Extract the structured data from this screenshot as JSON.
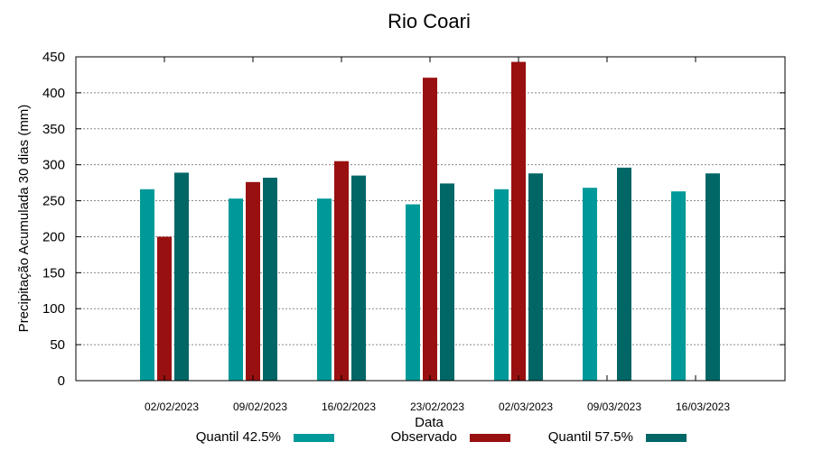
{
  "chart_data": {
    "type": "bar",
    "title": "Rio Coari",
    "xlabel": "Data",
    "ylabel": "Precipitação Acumulada 30 dias (mm)",
    "ylim": [
      0,
      450
    ],
    "yticks": [
      0,
      50,
      100,
      150,
      200,
      250,
      300,
      350,
      400,
      450
    ],
    "grid": true,
    "legend_position": "bottom",
    "categories": [
      "02/02/2023",
      "09/02/2023",
      "16/02/2023",
      "23/02/2023",
      "02/03/2023",
      "09/03/2023",
      "16/03/2023"
    ],
    "series": [
      {
        "name": "Quantil 42.5%",
        "color": "#009999",
        "values": [
          266,
          253,
          253,
          245,
          266,
          268,
          263
        ]
      },
      {
        "name": "Observado",
        "color": "#991010",
        "values": [
          200,
          276,
          305,
          421,
          443,
          null,
          null
        ]
      },
      {
        "name": "Quantil 57.5%",
        "color": "#006666",
        "values": [
          289,
          282,
          285,
          274,
          288,
          296,
          288
        ]
      }
    ]
  }
}
